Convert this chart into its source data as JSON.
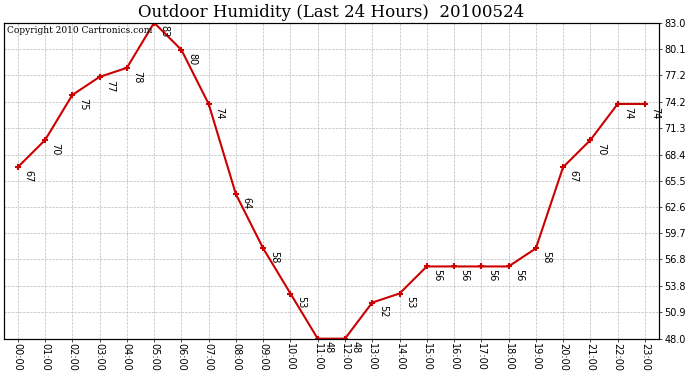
{
  "title": "Outdoor Humidity (Last 24 Hours)  20100524",
  "copyright": "Copyright 2010 Cartronics.com",
  "hours": [
    "00:00",
    "01:00",
    "02:00",
    "03:00",
    "04:00",
    "05:00",
    "06:00",
    "07:00",
    "08:00",
    "09:00",
    "10:00",
    "11:00",
    "12:00",
    "13:00",
    "14:00",
    "15:00",
    "16:00",
    "17:00",
    "18:00",
    "19:00",
    "20:00",
    "21:00",
    "22:00",
    "23:00"
  ],
  "values": [
    67,
    70,
    75,
    77,
    78,
    83,
    80,
    74,
    64,
    58,
    53,
    48,
    48,
    52,
    53,
    56,
    56,
    56,
    56,
    58,
    67,
    70,
    74,
    74
  ],
  "line_color": "#cc0000",
  "marker_color": "#cc0000",
  "bg_color": "#ffffff",
  "grid_color": "#bbbbbb",
  "ylim": [
    48.0,
    83.0
  ],
  "yticks": [
    48.0,
    50.9,
    53.8,
    56.8,
    59.7,
    62.6,
    65.5,
    68.4,
    71.3,
    74.2,
    77.2,
    80.1,
    83.0
  ],
  "title_fontsize": 12,
  "label_fontsize": 7,
  "copyright_fontsize": 6.5
}
